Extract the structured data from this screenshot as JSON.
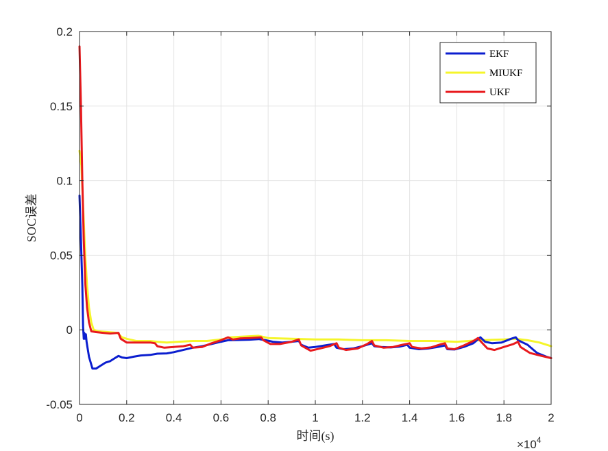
{
  "chart_data": {
    "type": "line",
    "title": "",
    "xlabel": "时间(s)",
    "ylabel": "SOC误差",
    "xlim": [
      0,
      20000
    ],
    "ylim": [
      -0.05,
      0.2
    ],
    "x_multiplier_label": "×10",
    "x_multiplier_exponent": "4",
    "x_ticks": [
      0,
      2000,
      4000,
      6000,
      8000,
      10000,
      12000,
      14000,
      16000,
      18000,
      20000
    ],
    "x_tick_labels": [
      "0",
      "0.2",
      "0.4",
      "0.6",
      "0.8",
      "1",
      "1.2",
      "1.4",
      "1.6",
      "1.8",
      "2"
    ],
    "y_ticks": [
      -0.05,
      0,
      0.05,
      0.1,
      0.15,
      0.2
    ],
    "y_tick_labels": [
      "-0.05",
      "0",
      "0.05",
      "0.1",
      "0.15",
      "0.2"
    ],
    "grid": true,
    "legend_position": "top-right",
    "series": [
      {
        "name": "EKF",
        "color": "#0b1ecf",
        "points": [
          [
            0,
            0.09
          ],
          [
            60,
            0.06
          ],
          [
            120,
            0.03
          ],
          [
            150,
            0.002
          ],
          [
            180,
            -0.006
          ],
          [
            200,
            -0.002
          ],
          [
            230,
            -0.006
          ],
          [
            270,
            -0.003
          ],
          [
            300,
            -0.008
          ],
          [
            400,
            -0.018
          ],
          [
            550,
            -0.026
          ],
          [
            700,
            -0.026
          ],
          [
            900,
            -0.024
          ],
          [
            1100,
            -0.022
          ],
          [
            1300,
            -0.021
          ],
          [
            1500,
            -0.019
          ],
          [
            1650,
            -0.0175
          ],
          [
            1800,
            -0.0185
          ],
          [
            2000,
            -0.019
          ],
          [
            2300,
            -0.018
          ],
          [
            2600,
            -0.0172
          ],
          [
            3000,
            -0.0168
          ],
          [
            3300,
            -0.016
          ],
          [
            3700,
            -0.0158
          ],
          [
            4000,
            -0.015
          ],
          [
            4400,
            -0.0135
          ],
          [
            4800,
            -0.012
          ],
          [
            5200,
            -0.011
          ],
          [
            5600,
            -0.0095
          ],
          [
            6000,
            -0.008
          ],
          [
            6300,
            -0.007
          ],
          [
            6800,
            -0.0068
          ],
          [
            7200,
            -0.0066
          ],
          [
            7600,
            -0.0062
          ],
          [
            7900,
            -0.007
          ],
          [
            8200,
            -0.008
          ],
          [
            8600,
            -0.0085
          ],
          [
            9000,
            -0.008
          ],
          [
            9300,
            -0.0075
          ],
          [
            9400,
            -0.01
          ],
          [
            9700,
            -0.012
          ],
          [
            10000,
            -0.0115
          ],
          [
            10400,
            -0.0105
          ],
          [
            10800,
            -0.0095
          ],
          [
            10900,
            -0.012
          ],
          [
            11200,
            -0.013
          ],
          [
            11600,
            -0.0125
          ],
          [
            12000,
            -0.011
          ],
          [
            12400,
            -0.009
          ],
          [
            12500,
            -0.011
          ],
          [
            12800,
            -0.0115
          ],
          [
            13200,
            -0.0118
          ],
          [
            13600,
            -0.0112
          ],
          [
            13900,
            -0.01
          ],
          [
            14000,
            -0.012
          ],
          [
            14400,
            -0.013
          ],
          [
            14800,
            -0.0125
          ],
          [
            15200,
            -0.0115
          ],
          [
            15500,
            -0.0105
          ],
          [
            15600,
            -0.013
          ],
          [
            15900,
            -0.0132
          ],
          [
            16300,
            -0.0115
          ],
          [
            16700,
            -0.009
          ],
          [
            17000,
            -0.005
          ],
          [
            17200,
            -0.008
          ],
          [
            17500,
            -0.009
          ],
          [
            17900,
            -0.0085
          ],
          [
            18300,
            -0.006
          ],
          [
            18500,
            -0.005
          ],
          [
            18600,
            -0.007
          ],
          [
            19000,
            -0.01
          ],
          [
            19400,
            -0.0155
          ],
          [
            19800,
            -0.018
          ],
          [
            20000,
            -0.019
          ]
        ]
      },
      {
        "name": "MIUKF",
        "color": "#f5f52a",
        "points": [
          [
            0,
            0.12
          ],
          [
            80,
            0.11
          ],
          [
            160,
            0.08
          ],
          [
            240,
            0.05
          ],
          [
            320,
            0.03
          ],
          [
            400,
            0.015
          ],
          [
            500,
            0.005
          ],
          [
            600,
            0.0
          ],
          [
            800,
            -0.001
          ],
          [
            1200,
            -0.0015
          ],
          [
            1600,
            -0.002
          ],
          [
            1800,
            -0.005
          ],
          [
            2000,
            -0.006
          ],
          [
            2400,
            -0.0075
          ],
          [
            3000,
            -0.0075
          ],
          [
            3300,
            -0.008
          ],
          [
            3700,
            -0.0085
          ],
          [
            4200,
            -0.008
          ],
          [
            4800,
            -0.0075
          ],
          [
            5400,
            -0.0075
          ],
          [
            6000,
            -0.0065
          ],
          [
            6400,
            -0.005
          ],
          [
            7000,
            -0.0045
          ],
          [
            7600,
            -0.004
          ],
          [
            8000,
            -0.0055
          ],
          [
            9000,
            -0.006
          ],
          [
            10000,
            -0.0065
          ],
          [
            11000,
            -0.0065
          ],
          [
            12000,
            -0.007
          ],
          [
            13000,
            -0.007
          ],
          [
            14000,
            -0.0075
          ],
          [
            15000,
            -0.0075
          ],
          [
            16000,
            -0.008
          ],
          [
            17000,
            -0.007
          ],
          [
            18000,
            -0.0065
          ],
          [
            18500,
            -0.006
          ],
          [
            19000,
            -0.007
          ],
          [
            19500,
            -0.0085
          ],
          [
            20000,
            -0.011
          ]
        ]
      },
      {
        "name": "UKF",
        "color": "#e8191d",
        "points": [
          [
            0,
            0.19
          ],
          [
            60,
            0.15
          ],
          [
            120,
            0.1
          ],
          [
            180,
            0.06
          ],
          [
            250,
            0.03
          ],
          [
            320,
            0.015
          ],
          [
            400,
            0.005
          ],
          [
            500,
            -0.001
          ],
          [
            700,
            -0.0015
          ],
          [
            1000,
            -0.002
          ],
          [
            1300,
            -0.0025
          ],
          [
            1650,
            -0.002
          ],
          [
            1750,
            -0.006
          ],
          [
            2000,
            -0.0085
          ],
          [
            2500,
            -0.0085
          ],
          [
            3000,
            -0.0085
          ],
          [
            3200,
            -0.009
          ],
          [
            3300,
            -0.011
          ],
          [
            3600,
            -0.012
          ],
          [
            4000,
            -0.0115
          ],
          [
            4400,
            -0.011
          ],
          [
            4700,
            -0.01
          ],
          [
            4800,
            -0.012
          ],
          [
            5200,
            -0.0115
          ],
          [
            5600,
            -0.009
          ],
          [
            6000,
            -0.007
          ],
          [
            6300,
            -0.005
          ],
          [
            6500,
            -0.0065
          ],
          [
            6800,
            -0.0058
          ],
          [
            7200,
            -0.0055
          ],
          [
            7700,
            -0.005
          ],
          [
            7800,
            -0.007
          ],
          [
            8100,
            -0.0095
          ],
          [
            8500,
            -0.0095
          ],
          [
            9000,
            -0.008
          ],
          [
            9300,
            -0.0065
          ],
          [
            9400,
            -0.0105
          ],
          [
            9800,
            -0.014
          ],
          [
            10200,
            -0.0125
          ],
          [
            10600,
            -0.011
          ],
          [
            10900,
            -0.009
          ],
          [
            11000,
            -0.012
          ],
          [
            11300,
            -0.0135
          ],
          [
            11800,
            -0.0125
          ],
          [
            12200,
            -0.0095
          ],
          [
            12400,
            -0.0075
          ],
          [
            12500,
            -0.0105
          ],
          [
            12900,
            -0.012
          ],
          [
            13300,
            -0.0115
          ],
          [
            13700,
            -0.01
          ],
          [
            14000,
            -0.009
          ],
          [
            14100,
            -0.0115
          ],
          [
            14500,
            -0.0125
          ],
          [
            14900,
            -0.0118
          ],
          [
            15300,
            -0.0098
          ],
          [
            15500,
            -0.009
          ],
          [
            15600,
            -0.0125
          ],
          [
            15900,
            -0.013
          ],
          [
            16300,
            -0.0105
          ],
          [
            16700,
            -0.0075
          ],
          [
            16900,
            -0.0055
          ],
          [
            17000,
            -0.0075
          ],
          [
            17300,
            -0.0125
          ],
          [
            17600,
            -0.0135
          ],
          [
            18000,
            -0.0115
          ],
          [
            18400,
            -0.0095
          ],
          [
            18600,
            -0.008
          ],
          [
            18700,
            -0.0115
          ],
          [
            19100,
            -0.0155
          ],
          [
            19600,
            -0.0175
          ],
          [
            20000,
            -0.019
          ]
        ]
      }
    ]
  }
}
